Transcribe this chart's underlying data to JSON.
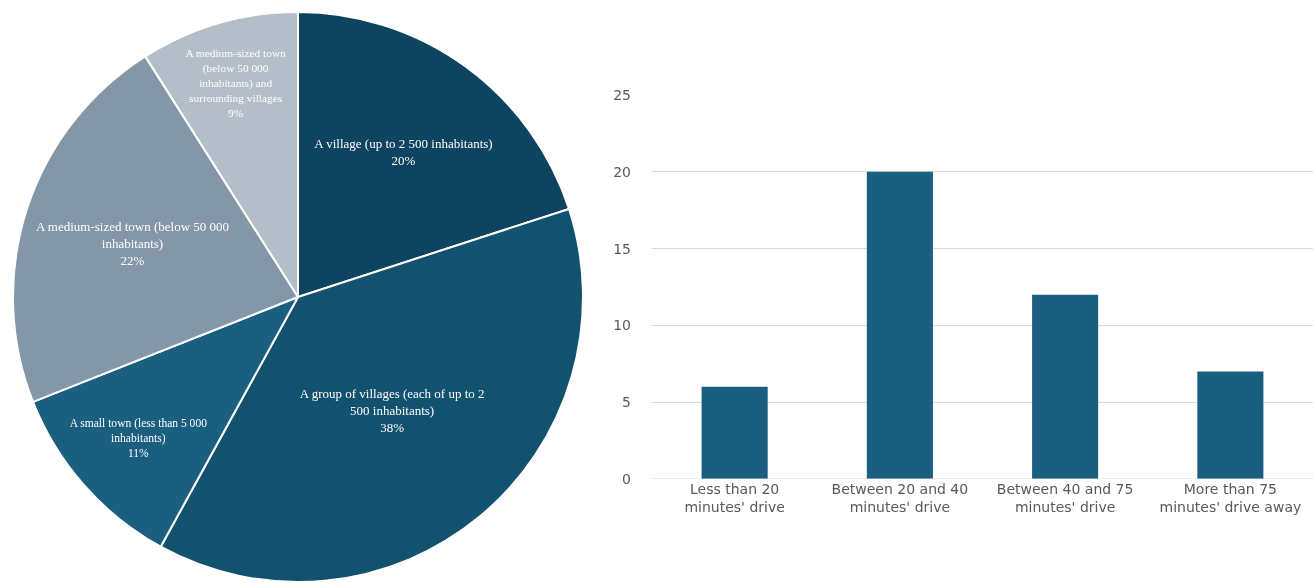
{
  "chart_data": [
    {
      "type": "pie",
      "categories": [
        "A village (up to 2 500 inhabitants)",
        "A group of villages (each of up to 2 500 inhabitants)",
        "A small town (less than 5 000 inhabitants)",
        "A medium-sized town (below 50 000 inhabitants)",
        "A medium-sized town (below 50 000 inhabitants) and surrounding villages"
      ],
      "values": [
        20,
        38,
        11,
        22,
        9
      ],
      "value_labels": [
        "20%",
        "38%",
        "11%",
        "22%",
        "9%"
      ],
      "colors": [
        "#0f4460",
        "#13526f",
        "#1a5e80",
        "#8497a8",
        "#b3bec8"
      ],
      "legend": false
    },
    {
      "type": "bar",
      "categories": [
        "Less than 20 minutes' drive",
        "Between 20 and 40 minutes' drive",
        "Between 40 and 75 minutes' drive",
        "More than 75 minutes' drive away"
      ],
      "values": [
        6,
        20,
        12,
        7
      ],
      "color": "#1a5f80",
      "ylim": [
        0,
        25
      ],
      "yticks": [
        0,
        5,
        10,
        15,
        20,
        25
      ],
      "grid": "y",
      "legend": false
    }
  ]
}
